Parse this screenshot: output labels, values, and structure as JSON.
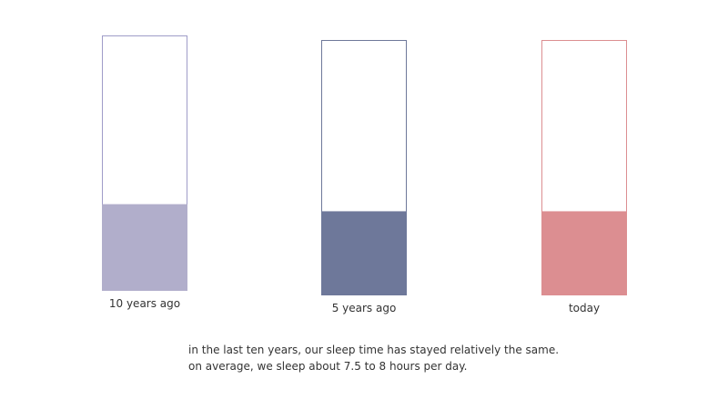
{
  "chart_data": {
    "type": "bar",
    "categories": [
      "10 years ago",
      "5 years ago",
      "today"
    ],
    "values": [
      7.75,
      7.75,
      7.75
    ],
    "fill_fraction": [
      0.34,
      0.33,
      0.33
    ],
    "colors": [
      "#b1aecb",
      "#6e789a",
      "#dc8e91"
    ],
    "outline_colors": [
      "#9f9cc8",
      "#6e789a",
      "#dc8e91"
    ],
    "title": "",
    "xlabel": "",
    "ylabel": ""
  },
  "caption": {
    "line1": "in the last ten years, our sleep time has stayed relatively the same.",
    "line2": "on average, we sleep about 7.5 to 8 hours per day."
  }
}
